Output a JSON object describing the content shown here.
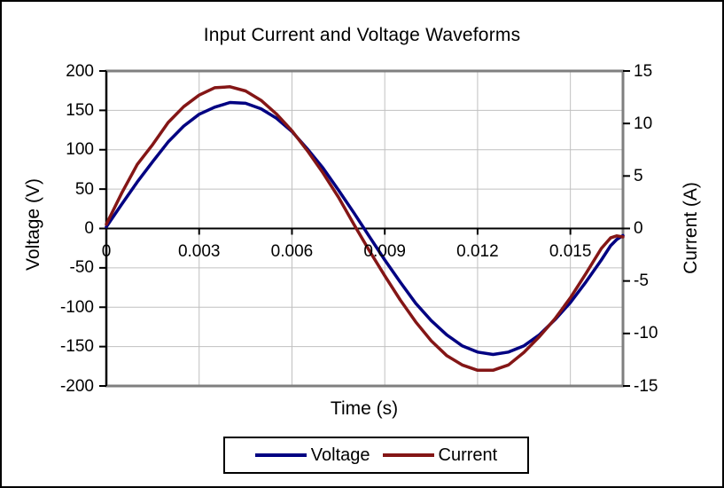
{
  "chart_data": {
    "type": "line",
    "title": "Input Current and Voltage Waveforms",
    "xlabel": "Time (s)",
    "ylabel_left": "Voltage (V)",
    "ylabel_right": "Current (A)",
    "xlim": [
      0,
      0.0167
    ],
    "ylim_left": [
      -200,
      200
    ],
    "ylim_right": [
      -15,
      15
    ],
    "grid": true,
    "legend_position": "bottom",
    "x_tick_values": [
      0,
      0.003,
      0.006,
      0.009,
      0.012,
      0.015
    ],
    "x_tick_labels": [
      "0",
      "0.003",
      "0.006",
      "0.009",
      "0.012",
      "0.015"
    ],
    "y_left_tick_values": [
      200,
      150,
      100,
      50,
      0,
      -50,
      -100,
      -150,
      -200
    ],
    "y_left_tick_labels": [
      "200",
      "150",
      "100",
      "50",
      "0",
      "-50",
      "-100",
      "-150",
      "-200"
    ],
    "y_right_tick_values": [
      15,
      10,
      5,
      0,
      -5,
      -10,
      -15
    ],
    "y_right_tick_labels": [
      "15",
      "10",
      "5",
      "0",
      "-5",
      "-10",
      "-15"
    ],
    "x": [
      0,
      0.0005,
      0.001,
      0.0015,
      0.002,
      0.0025,
      0.003,
      0.0035,
      0.004,
      0.0045,
      0.005,
      0.0055,
      0.006,
      0.0065,
      0.007,
      0.0075,
      0.008,
      0.0085,
      0.009,
      0.0095,
      0.01,
      0.0105,
      0.011,
      0.0115,
      0.012,
      0.0125,
      0.013,
      0.0135,
      0.014,
      0.0145,
      0.015,
      0.0155,
      0.016,
      0.0163,
      0.0165,
      0.0167
    ],
    "series": [
      {
        "name": "Voltage",
        "axis": "left",
        "unit": "V",
        "color": "#000082",
        "amplitude": 160,
        "values": [
          2,
          31,
          59,
          85,
          110,
          130,
          145,
          154,
          160,
          159,
          152,
          140,
          123,
          101,
          77,
          49,
          20,
          -10,
          -40,
          -68,
          -95,
          -117,
          -135,
          -149,
          -157,
          -160,
          -157,
          -149,
          -135,
          -116,
          -94,
          -68,
          -40,
          -22,
          -14,
          -9
        ]
      },
      {
        "name": "Current",
        "axis": "right",
        "unit": "A",
        "color": "#841616",
        "amplitude": 13.5,
        "values": [
          0.4,
          3.4,
          6.1,
          8.0,
          10.1,
          11.6,
          12.7,
          13.4,
          13.5,
          13.1,
          12.2,
          10.9,
          9.3,
          7.4,
          5.3,
          3.0,
          0.4,
          -2.1,
          -4.5,
          -6.8,
          -8.9,
          -10.7,
          -12.1,
          -13.0,
          -13.5,
          -13.5,
          -13.0,
          -11.8,
          -10.3,
          -8.6,
          -6.6,
          -4.3,
          -1.9,
          -0.9,
          -0.7,
          -0.8
        ]
      }
    ]
  },
  "colors": {
    "gridline": "#c0c0c0",
    "plot_border": "#7f7f7f",
    "axis_line": "#000000",
    "background": "#ffffff",
    "outer_border": "#000000",
    "text": "#000000"
  }
}
